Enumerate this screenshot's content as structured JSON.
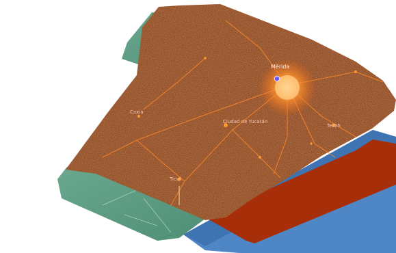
{
  "map": {
    "style": "3D stacked map layers over a white background",
    "colors": {
      "background": "#ffffff",
      "night_lights_base": "#7a1e05",
      "night_lights_glow": "#ff8a2a",
      "vegetation_layer": "#5f9b83",
      "water_layer": "#4f86c6",
      "terrain_layer": "#a62f09"
    },
    "layers": [
      {
        "id": "night-lights",
        "name": "night lights layer"
      },
      {
        "id": "vegetation",
        "name": "vegetation layer"
      },
      {
        "id": "water",
        "name": "water layer"
      },
      {
        "id": "terrain",
        "name": "terrain layer"
      }
    ],
    "places": [
      {
        "name": "Mérida",
        "major": true
      },
      {
        "name": "Caxia",
        "major": false
      },
      {
        "name": "Ciudad de Yucatán",
        "major": false
      },
      {
        "name": "Tecoh",
        "major": false
      },
      {
        "name": "Ticul",
        "major": false
      }
    ],
    "marker": {
      "color": "#6a5cff",
      "label": "selected-location"
    }
  }
}
